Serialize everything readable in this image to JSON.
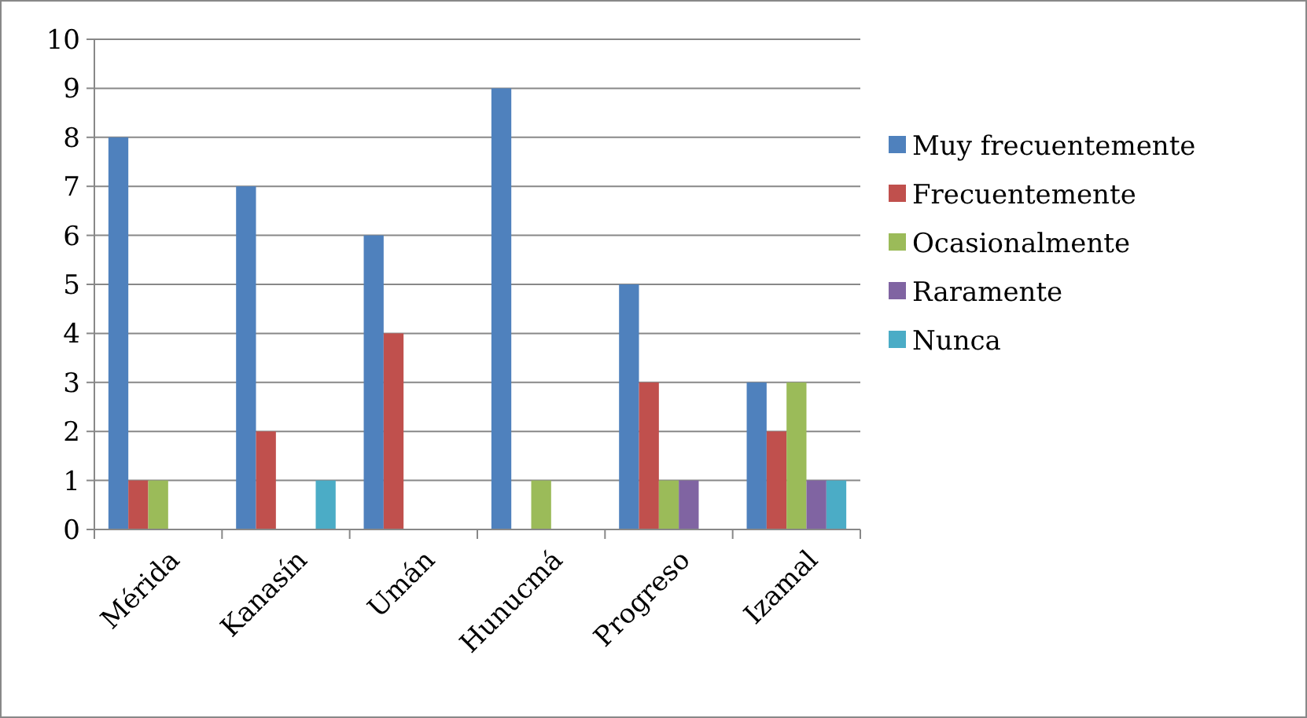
{
  "chart_data": {
    "type": "bar",
    "categories": [
      "Mérida",
      "Kanasín",
      "Umán",
      "Hunucmá",
      "Progreso",
      "Izamal"
    ],
    "series": [
      {
        "name": "Muy frecuentemente",
        "color": "#4f81bd",
        "values": [
          8,
          7,
          6,
          9,
          5,
          3
        ]
      },
      {
        "name": "Frecuentemente",
        "color": "#c0504d",
        "values": [
          1,
          2,
          4,
          0,
          3,
          2
        ]
      },
      {
        "name": "Ocasionalmente",
        "color": "#9bbb59",
        "values": [
          1,
          0,
          0,
          1,
          1,
          3
        ]
      },
      {
        "name": "Raramente",
        "color": "#8064a2",
        "values": [
          0,
          0,
          0,
          0,
          1,
          1
        ]
      },
      {
        "name": "Nunca",
        "color": "#4bacc6",
        "values": [
          0,
          1,
          0,
          0,
          0,
          1
        ]
      }
    ],
    "ylim": [
      0,
      10
    ],
    "yticks": [
      0,
      1,
      2,
      3,
      4,
      5,
      6,
      7,
      8,
      9,
      10
    ],
    "grid": "y",
    "legend": "right"
  }
}
